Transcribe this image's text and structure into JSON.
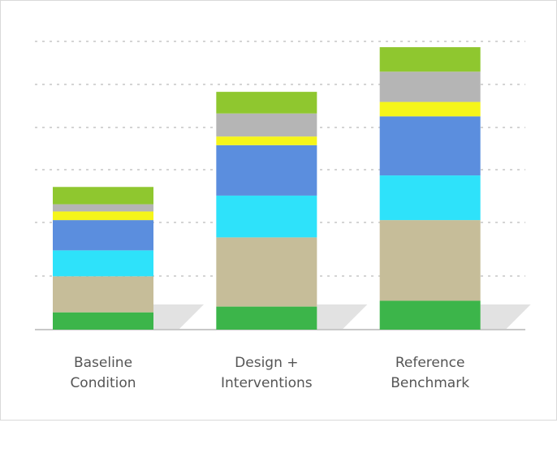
{
  "chart_data": {
    "type": "bar",
    "stacked": true,
    "categories": [
      [
        "Baseline",
        "Condition"
      ],
      [
        "Design +",
        "Interventions"
      ],
      [
        "Reference",
        "Benchmark"
      ]
    ],
    "ylim": [
      0,
      100
    ],
    "grid": true,
    "y_tick_labels_shown": false,
    "series": [
      {
        "color": "#3cb54a",
        "values": [
          6,
          8,
          10
        ]
      },
      {
        "color": "#c6bd99",
        "values": [
          12.5,
          24,
          28
        ]
      },
      {
        "color": "#2ee2fa",
        "values": [
          9,
          14.5,
          15.5
        ]
      },
      {
        "color": "#5b8ede",
        "values": [
          10.5,
          17.5,
          20.5
        ]
      },
      {
        "color": "#f5f51a",
        "values": [
          3,
          3,
          5
        ]
      },
      {
        "color": "#b5b5b5",
        "values": [
          2.5,
          8,
          10.5
        ]
      },
      {
        "color": "#8fc72f",
        "values": [
          6,
          7.5,
          8.5
        ]
      }
    ]
  }
}
